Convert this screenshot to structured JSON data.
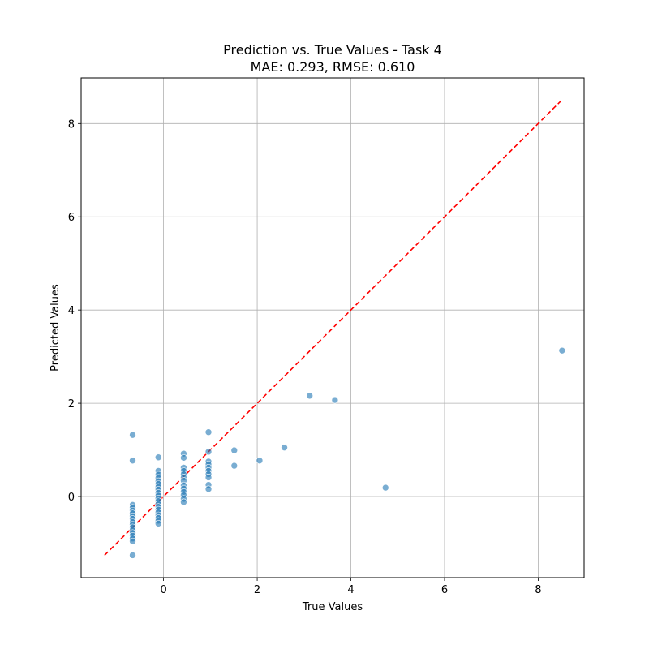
{
  "chart_data": {
    "type": "scatter",
    "title": "Prediction vs. True Values - Task 4",
    "subtitle": "MAE: 0.293, RMSE: 0.610",
    "xlabel": "True Values",
    "ylabel": "Predicted Values",
    "xlim": [
      -1.76,
      8.98
    ],
    "ylim": [
      -1.74,
      8.98
    ],
    "xticks": [
      0,
      2,
      4,
      6,
      8
    ],
    "yticks": [
      0,
      2,
      4,
      6,
      8
    ],
    "grid": true,
    "colors": {
      "points": "#1f77b4",
      "reference_line": "#ff0000",
      "grid": "#b0b0b0"
    },
    "reference_line": {
      "style": "dashed",
      "from": [
        -1.26,
        -1.26
      ],
      "to": [
        8.49,
        8.49
      ]
    },
    "points": [
      {
        "x": -0.66,
        "y": 1.32
      },
      {
        "x": -0.66,
        "y": 0.77
      },
      {
        "x": -0.66,
        "y": -0.18
      },
      {
        "x": -0.66,
        "y": -0.24
      },
      {
        "x": -0.66,
        "y": -0.3
      },
      {
        "x": -0.66,
        "y": -0.36
      },
      {
        "x": -0.66,
        "y": -0.42
      },
      {
        "x": -0.66,
        "y": -0.48
      },
      {
        "x": -0.66,
        "y": -0.55
      },
      {
        "x": -0.66,
        "y": -0.6
      },
      {
        "x": -0.66,
        "y": -0.66
      },
      {
        "x": -0.66,
        "y": -0.72
      },
      {
        "x": -0.66,
        "y": -0.78
      },
      {
        "x": -0.66,
        "y": -0.84
      },
      {
        "x": -0.66,
        "y": -0.9
      },
      {
        "x": -0.66,
        "y": -0.96
      },
      {
        "x": -0.66,
        "y": -1.26
      },
      {
        "x": -0.11,
        "y": 0.84
      },
      {
        "x": -0.11,
        "y": 0.55
      },
      {
        "x": -0.11,
        "y": 0.47
      },
      {
        "x": -0.11,
        "y": 0.4
      },
      {
        "x": -0.11,
        "y": 0.33
      },
      {
        "x": -0.11,
        "y": 0.27
      },
      {
        "x": -0.11,
        "y": 0.21
      },
      {
        "x": -0.11,
        "y": 0.15
      },
      {
        "x": -0.11,
        "y": 0.08
      },
      {
        "x": -0.11,
        "y": 0.02
      },
      {
        "x": -0.11,
        "y": -0.04
      },
      {
        "x": -0.11,
        "y": -0.1
      },
      {
        "x": -0.11,
        "y": -0.16
      },
      {
        "x": -0.11,
        "y": -0.22
      },
      {
        "x": -0.11,
        "y": -0.28
      },
      {
        "x": -0.11,
        "y": -0.34
      },
      {
        "x": -0.11,
        "y": -0.4
      },
      {
        "x": -0.11,
        "y": -0.46
      },
      {
        "x": -0.11,
        "y": -0.52
      },
      {
        "x": -0.11,
        "y": -0.58
      },
      {
        "x": 0.43,
        "y": 0.92
      },
      {
        "x": 0.43,
        "y": 0.83
      },
      {
        "x": 0.43,
        "y": 0.62
      },
      {
        "x": 0.43,
        "y": 0.55
      },
      {
        "x": 0.43,
        "y": 0.48
      },
      {
        "x": 0.43,
        "y": 0.41
      },
      {
        "x": 0.43,
        "y": 0.34
      },
      {
        "x": 0.43,
        "y": 0.24
      },
      {
        "x": 0.43,
        "y": 0.17
      },
      {
        "x": 0.43,
        "y": 0.1
      },
      {
        "x": 0.43,
        "y": 0.03
      },
      {
        "x": 0.43,
        "y": -0.05
      },
      {
        "x": 0.43,
        "y": -0.12
      },
      {
        "x": 0.96,
        "y": 1.38
      },
      {
        "x": 0.96,
        "y": 0.96
      },
      {
        "x": 0.96,
        "y": 0.75
      },
      {
        "x": 0.96,
        "y": 0.69
      },
      {
        "x": 0.96,
        "y": 0.62
      },
      {
        "x": 0.96,
        "y": 0.55
      },
      {
        "x": 0.96,
        "y": 0.48
      },
      {
        "x": 0.96,
        "y": 0.41
      },
      {
        "x": 0.96,
        "y": 0.25
      },
      {
        "x": 0.96,
        "y": 0.16
      },
      {
        "x": 1.51,
        "y": 0.99
      },
      {
        "x": 1.51,
        "y": 0.66
      },
      {
        "x": 2.05,
        "y": 0.77
      },
      {
        "x": 2.58,
        "y": 1.05
      },
      {
        "x": 3.12,
        "y": 2.16
      },
      {
        "x": 3.66,
        "y": 2.07
      },
      {
        "x": 4.74,
        "y": 0.19
      },
      {
        "x": 8.51,
        "y": 3.13
      }
    ]
  }
}
